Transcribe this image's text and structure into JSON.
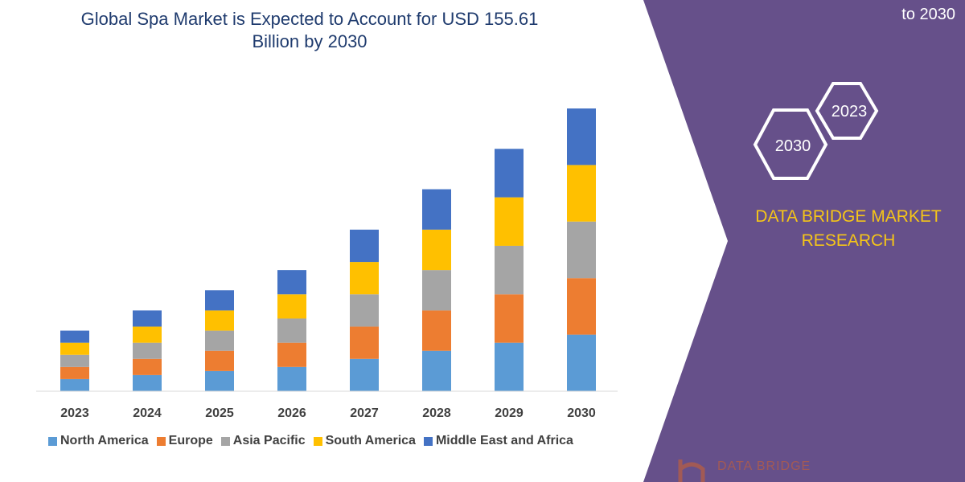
{
  "header": {
    "title_line1": "Global Spa Market is Expected to Account for USD 155.61",
    "title_line2": "Billion by 2030",
    "top_right_text": "to 2030"
  },
  "side_panel": {
    "hex_top": "2023",
    "hex_bottom": "2030",
    "brand_line1": "DATA BRIDGE MARKET",
    "brand_line2": "RESEARCH",
    "logo_text": "DATA BRIDGE",
    "panel_color": "#66508a",
    "brand_color": "#f5c518"
  },
  "chart_data": {
    "type": "bar",
    "stacked": true,
    "categories": [
      "2023",
      "2024",
      "2025",
      "2026",
      "2027",
      "2028",
      "2029",
      "2030"
    ],
    "series": [
      {
        "name": "North America",
        "color": "#5b9bd5",
        "values": [
          15,
          20,
          25,
          30,
          40,
          50,
          60,
          70
        ]
      },
      {
        "name": "Europe",
        "color": "#ed7d31",
        "values": [
          15,
          20,
          25,
          30,
          40,
          50,
          60,
          70
        ]
      },
      {
        "name": "Asia Pacific",
        "color": "#a5a5a5",
        "values": [
          15,
          20,
          25,
          30,
          40,
          50,
          60,
          70
        ]
      },
      {
        "name": "South America",
        "color": "#ffc000",
        "values": [
          15,
          20,
          25,
          30,
          40,
          50,
          60,
          70
        ]
      },
      {
        "name": "Middle East and Africa",
        "color": "#4472c4",
        "values": [
          15,
          20,
          25,
          30,
          40,
          50,
          60,
          70
        ]
      }
    ],
    "xlabel": "",
    "ylabel": "",
    "ylim": [
      0,
      350
    ],
    "grid": false,
    "legend_position": "bottom"
  }
}
